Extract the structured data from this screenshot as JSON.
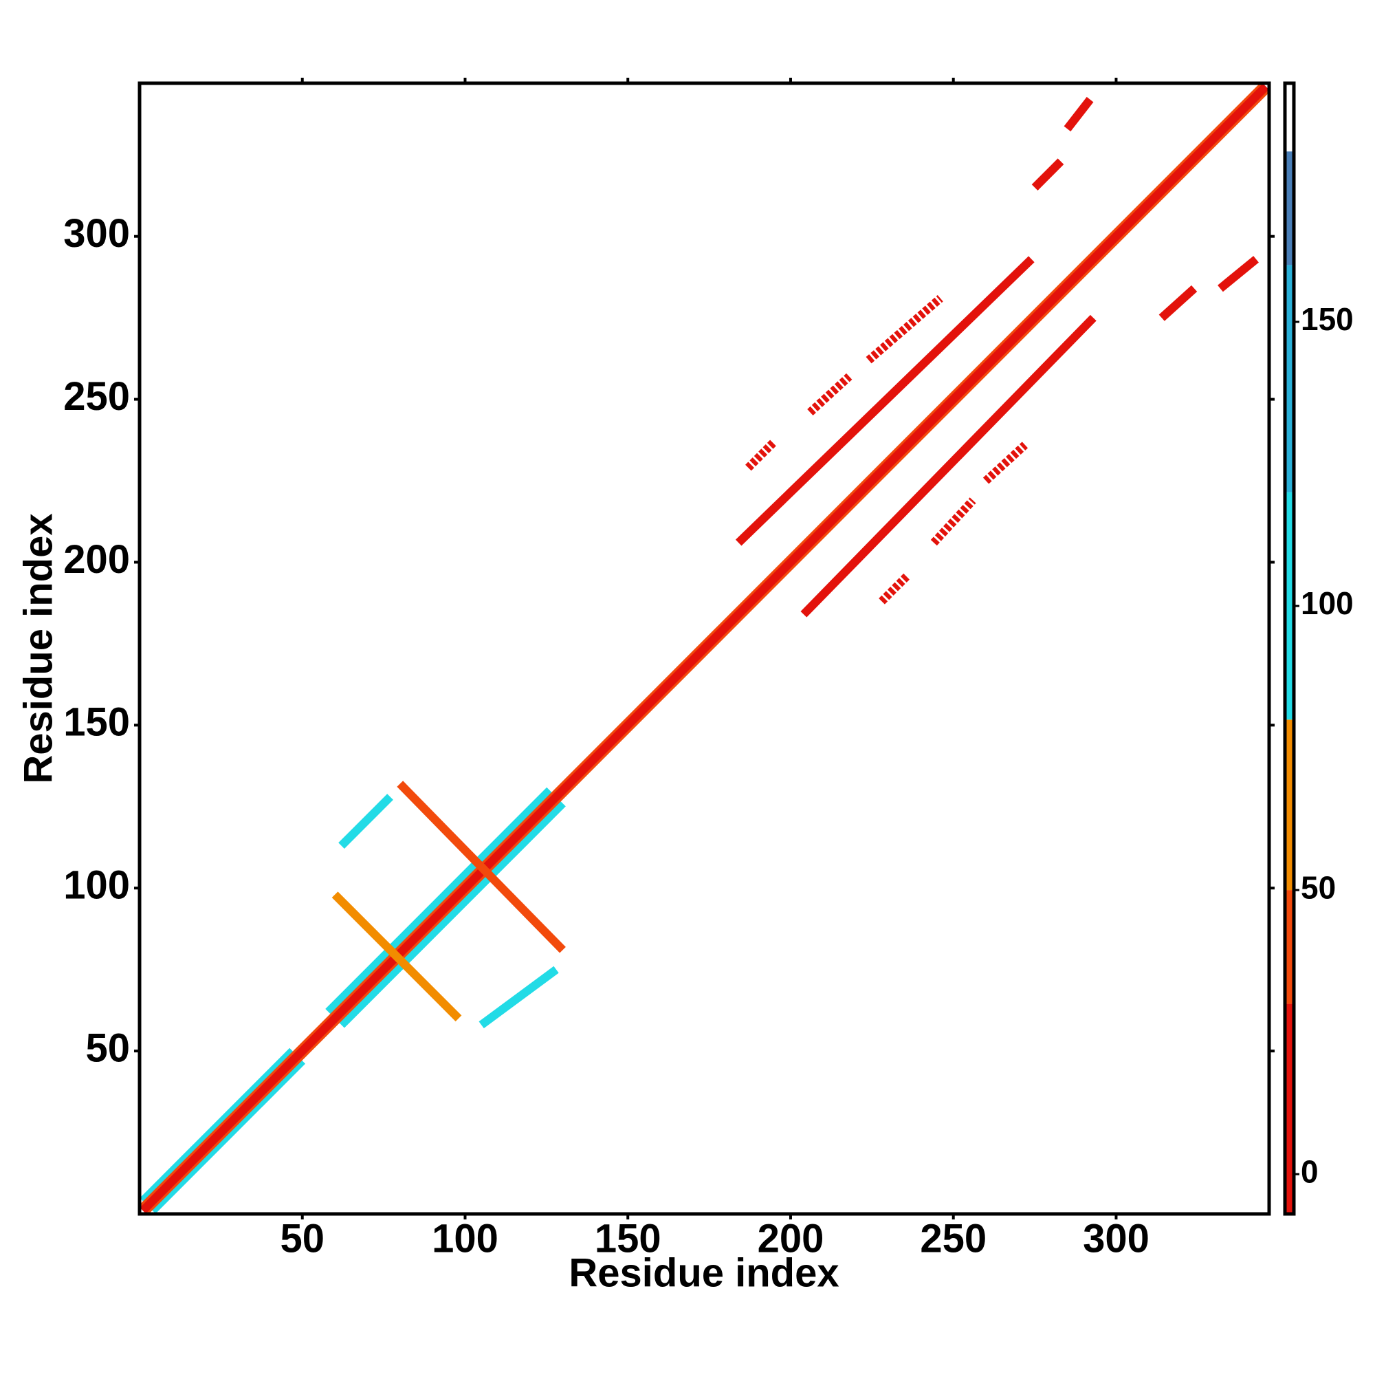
{
  "chart_data": {
    "type": "heatmap",
    "xlabel": "Residue index",
    "ylabel": "Residue index",
    "xlim": [
      0,
      347
    ],
    "ylim": [
      0,
      347
    ],
    "xticks": [
      50,
      100,
      150,
      200,
      250,
      300
    ],
    "yticks": [
      50,
      100,
      150,
      200,
      250,
      300
    ],
    "contacts": [
      {
        "x": [
          4,
          50
        ],
        "y": [
          1,
          47
        ],
        "value": 100
      },
      {
        "x": [
          1,
          47
        ],
        "y": [
          4,
          50
        ],
        "value": 100
      },
      {
        "x": [
          62,
          130
        ],
        "y": [
          58,
          126
        ],
        "value": 100
      },
      {
        "x": [
          58,
          126
        ],
        "y": [
          62,
          130
        ],
        "value": 100
      },
      {
        "x": [
          2,
          346
        ],
        "y": [
          1,
          345
        ],
        "value": 40
      },
      {
        "x": [
          1,
          345
        ],
        "y": [
          2,
          346
        ],
        "value": 40
      },
      {
        "x": [
          1,
          346
        ],
        "y": [
          1,
          346
        ],
        "value": -5
      },
      {
        "x": [
          184,
          274
        ],
        "y": [
          206,
          293
        ],
        "value": 10
      },
      {
        "x": [
          204,
          293
        ],
        "y": [
          184,
          275
        ],
        "value": 10
      },
      {
        "x": [
          206,
          218
        ],
        "y": [
          246,
          257
        ],
        "value": 0
      },
      {
        "x": [
          224,
          246
        ],
        "y": [
          262,
          281
        ],
        "value": 0
      },
      {
        "x": [
          260,
          272
        ],
        "y": [
          225,
          236
        ],
        "value": 0
      },
      {
        "x": [
          244,
          256
        ],
        "y": [
          206,
          219
        ],
        "value": 0
      },
      {
        "x": [
          187,
          195
        ],
        "y": [
          229,
          237
        ],
        "value": 0
      },
      {
        "x": [
          228,
          236
        ],
        "y": [
          188,
          196
        ],
        "value": 0
      },
      {
        "x": [
          285,
          292
        ],
        "y": [
          333,
          342
        ],
        "value": 20
      },
      {
        "x": [
          275,
          283
        ],
        "y": [
          315,
          323
        ],
        "value": 20
      },
      {
        "x": [
          314,
          324
        ],
        "y": [
          275,
          284
        ],
        "value": 20
      },
      {
        "x": [
          332,
          343
        ],
        "y": [
          284,
          293
        ],
        "value": 20
      },
      {
        "x": [
          80,
          130
        ],
        "y": [
          132,
          81
        ],
        "value": 40
      },
      {
        "x": [
          62,
          77
        ],
        "y": [
          113,
          128
        ],
        "value": 110
      },
      {
        "x": [
          60,
          98
        ],
        "y": [
          98,
          60
        ],
        "value": 60
      },
      {
        "x": [
          105,
          128
        ],
        "y": [
          58,
          75
        ],
        "value": 100
      }
    ],
    "colorbar": {
      "lim": [
        -7,
        192
      ],
      "ticks": [
        0,
        50,
        100,
        150
      ],
      "bands": [
        {
          "range": [
            -7,
            30
          ],
          "color": "#e3120b"
        },
        {
          "range": [
            30,
            50
          ],
          "color": "#f24a0c"
        },
        {
          "range": [
            50,
            80
          ],
          "color": "#f28c00"
        },
        {
          "range": [
            80,
            120
          ],
          "color": "#22dbe6"
        },
        {
          "range": [
            120,
            160
          ],
          "color": "#2ab0d8"
        },
        {
          "range": [
            160,
            180
          ],
          "color": "#4a7fb8"
        },
        {
          "range": [
            180,
            192
          ],
          "color": "#ffffff"
        }
      ]
    }
  }
}
